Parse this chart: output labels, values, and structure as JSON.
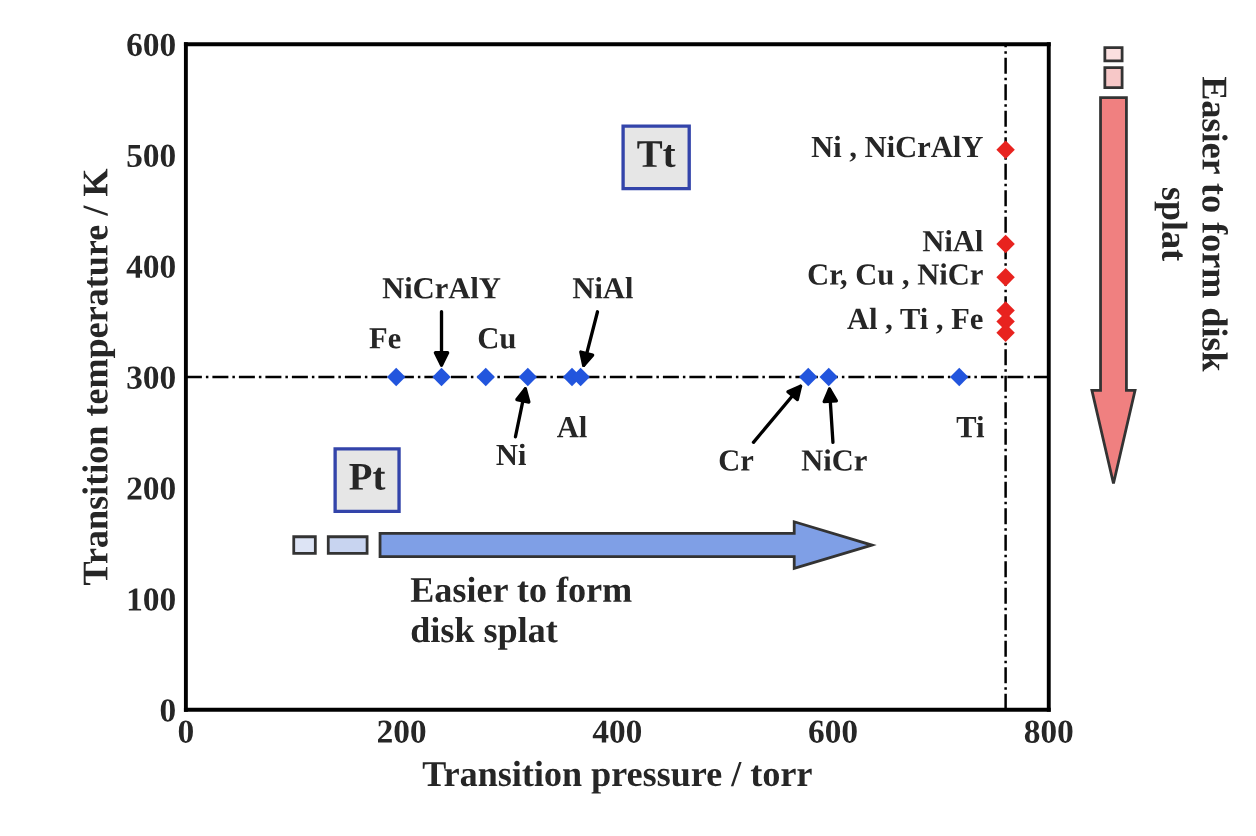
{
  "chart_data": {
    "type": "scatter",
    "xlabel": "Transition pressure / torr",
    "ylabel": "Transition temperature / K",
    "xlim": [
      0,
      800
    ],
    "xticks": [
      0,
      200,
      400,
      600,
      800
    ],
    "ylim": [
      0,
      600
    ],
    "yticks": [
      0,
      100,
      200,
      300,
      400,
      500,
      600
    ],
    "marker": "diamond",
    "grid": false,
    "legend": false,
    "series": [
      {
        "color": "#2255dd",
        "x": [
          195,
          237,
          278,
          317,
          358,
          366,
          577,
          596,
          717
        ],
        "values": [
          300,
          300,
          300,
          300,
          300,
          300,
          300,
          300,
          300
        ]
      },
      {
        "color": "#e8231f",
        "x": [
          760,
          760,
          760,
          760,
          760,
          760
        ],
        "values": [
          505,
          420,
          390,
          360,
          350,
          340
        ]
      }
    ],
    "ref_lines": [
      {
        "axis": "y",
        "value": 300,
        "line_style": "dashdot",
        "color": "#000000"
      },
      {
        "axis": "x",
        "value": 760,
        "line_style": "dashdot",
        "color": "#000000"
      }
    ],
    "annotations": [
      {
        "text": "Fe",
        "x": 195,
        "y": 300
      },
      {
        "text": "NiCrAlY",
        "x": 237,
        "y": 300
      },
      {
        "text": "Cu",
        "x": 278,
        "y": 300
      },
      {
        "text": "Ni",
        "x": 317,
        "y": 300
      },
      {
        "text": "NiAl",
        "x": 366,
        "y": 300
      },
      {
        "text": "Al",
        "x": 358,
        "y": 300
      },
      {
        "text": "Cr",
        "x": 577,
        "y": 300
      },
      {
        "text": "NiCr",
        "x": 596,
        "y": 300
      },
      {
        "text": "Ti",
        "x": 717,
        "y": 300
      },
      {
        "text": "Ni , NiCrAlY",
        "x": 760,
        "y": 505
      },
      {
        "text": "NiAl",
        "x": 760,
        "y": 420
      },
      {
        "text": "Cr, Cu , NiCr",
        "x": 760,
        "y": 390
      },
      {
        "text": "Al , Ti , Fe",
        "x": 760,
        "y": 350
      },
      "Tt",
      "Pt",
      "Easier to form\ndisk splat",
      "Easier to form disk\nsplat"
    ]
  }
}
